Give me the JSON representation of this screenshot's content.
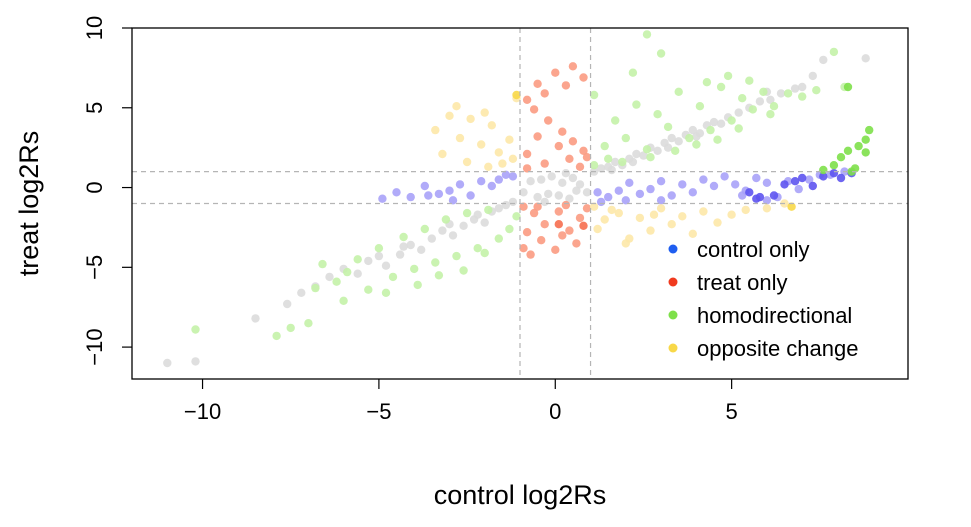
{
  "chart_data": {
    "type": "scatter",
    "xlabel": "control log2Rs",
    "ylabel": "treat log2Rs",
    "xlim": [
      -12,
      10
    ],
    "ylim": [
      -12,
      10
    ],
    "x_ticks": [
      -10,
      -5,
      0,
      5
    ],
    "x_tick_labels": [
      "−10",
      "−5",
      "0",
      "5"
    ],
    "y_ticks": [
      -10,
      -5,
      0,
      5,
      10
    ],
    "y_tick_labels": [
      "−10",
      "−5",
      "0",
      "5",
      "10"
    ],
    "reference_lines": {
      "x": [
        -1,
        1
      ],
      "y": [
        -1,
        1
      ],
      "style": "dashed"
    },
    "grid": false,
    "legend": {
      "position": "bottom-right",
      "entries": [
        {
          "label": "control only",
          "color": "#1f5ef0"
        },
        {
          "label": "treat only",
          "color": "#f03a1e"
        },
        {
          "label": "homodirectional",
          "color": "#7ee04a"
        },
        {
          "label": "opposite change",
          "color": "#f8d848"
        }
      ]
    },
    "series": [
      {
        "key": "none",
        "color": "#dcdcdc",
        "points": [
          [
            -11,
            -11
          ],
          [
            -10.2,
            -10.9
          ],
          [
            -8.5,
            -8.2
          ],
          [
            -7.6,
            -7.3
          ],
          [
            -7.2,
            -6.6
          ],
          [
            -6.8,
            -6.2
          ],
          [
            -6.4,
            -5.6
          ],
          [
            -6.0,
            -5.1
          ],
          [
            -5.6,
            -5.4
          ],
          [
            -5.3,
            -4.6
          ],
          [
            -5.0,
            -4.3
          ],
          [
            -4.8,
            -4.9
          ],
          [
            -4.4,
            -4.2
          ],
          [
            -4.1,
            -3.6
          ],
          [
            -3.8,
            -3.9
          ],
          [
            -3.5,
            -3.2
          ],
          [
            -3.2,
            -2.7
          ],
          [
            -2.9,
            -3.0
          ],
          [
            -2.6,
            -2.4
          ],
          [
            -2.3,
            -2.0
          ],
          [
            -2.0,
            -2.2
          ],
          [
            -1.8,
            -1.5
          ],
          [
            -1.6,
            -1.3
          ],
          [
            -1.4,
            -1.1
          ],
          [
            -1.2,
            -0.9
          ],
          [
            -0.9,
            -0.3
          ],
          [
            -0.7,
            0.4
          ],
          [
            -0.5,
            -0.6
          ],
          [
            -0.4,
            0.5
          ],
          [
            -0.2,
            -0.4
          ],
          [
            -0.1,
            0.7
          ],
          [
            0.1,
            -0.5
          ],
          [
            0.2,
            0.3
          ],
          [
            0.4,
            -0.7
          ],
          [
            0.5,
            0.6
          ],
          [
            0.7,
            0.2
          ],
          [
            0.9,
            -0.3
          ],
          [
            1.1,
            1.0
          ],
          [
            1.3,
            1.2
          ],
          [
            1.5,
            1.3
          ],
          [
            1.7,
            1.6
          ],
          [
            1.9,
            1.4
          ],
          [
            2.1,
            1.8
          ],
          [
            2.3,
            2.1
          ],
          [
            2.5,
            2.0
          ],
          [
            2.7,
            2.5
          ],
          [
            2.9,
            2.3
          ],
          [
            3.1,
            2.8
          ],
          [
            3.3,
            3.1
          ],
          [
            3.5,
            2.9
          ],
          [
            3.7,
            3.3
          ],
          [
            3.9,
            3.6
          ],
          [
            4.1,
            3.4
          ],
          [
            4.3,
            3.9
          ],
          [
            4.5,
            4.1
          ],
          [
            4.7,
            4.0
          ],
          [
            4.9,
            4.4
          ],
          [
            5.2,
            4.7
          ],
          [
            5.5,
            5.0
          ],
          [
            5.8,
            5.4
          ],
          [
            6.1,
            5.5
          ],
          [
            6.4,
            5.9
          ],
          [
            6.8,
            6.2
          ],
          [
            7.3,
            7.0
          ],
          [
            7.0,
            6.3
          ],
          [
            6.0,
            6.0
          ],
          [
            8.8,
            8.1
          ],
          [
            7.6,
            8.0
          ],
          [
            -4.3,
            -3.7
          ],
          [
            -3.0,
            -2.3
          ],
          [
            -2.2,
            -1.7
          ],
          [
            1.6,
            1.1
          ],
          [
            2.2,
            1.6
          ],
          [
            3.2,
            2.5
          ],
          [
            4.0,
            3.2
          ],
          [
            0.3,
            0.9
          ],
          [
            -0.3,
            -0.9
          ],
          [
            0.6,
            -0.2
          ]
        ]
      },
      {
        "key": "control only",
        "color": "#a8a2f8",
        "points": [
          [
            -4.9,
            -0.7
          ],
          [
            -4.5,
            -0.3
          ],
          [
            -4.1,
            -0.6
          ],
          [
            -3.7,
            0.1
          ],
          [
            -3.3,
            -0.4
          ],
          [
            -3.0,
            -0.2
          ],
          [
            -2.7,
            0.2
          ],
          [
            -2.4,
            -0.5
          ],
          [
            -2.1,
            0.4
          ],
          [
            -1.8,
            0.1
          ],
          [
            -1.6,
            0.5
          ],
          [
            -1.4,
            0.8
          ],
          [
            -1.2,
            0.7
          ],
          [
            -2.9,
            -0.8
          ],
          [
            -3.6,
            -0.5
          ],
          [
            1.2,
            -0.3
          ],
          [
            1.5,
            -0.6
          ],
          [
            1.8,
            -0.2
          ],
          [
            2.1,
            0.3
          ],
          [
            2.4,
            -0.4
          ],
          [
            2.7,
            -0.1
          ],
          [
            3.0,
            0.4
          ],
          [
            3.3,
            -0.5
          ],
          [
            3.6,
            0.2
          ],
          [
            3.9,
            -0.3
          ],
          [
            4.2,
            0.5
          ],
          [
            4.5,
            0.1
          ],
          [
            4.8,
            0.7
          ],
          [
            5.1,
            0.2
          ],
          [
            5.4,
            -0.2
          ],
          [
            5.7,
            0.6
          ],
          [
            6.0,
            0.3
          ],
          [
            6.3,
            -0.6
          ],
          [
            6.6,
            0.4
          ],
          [
            6.9,
            -0.1
          ],
          [
            7.2,
            0.5
          ],
          [
            7.5,
            0.8
          ],
          [
            7.8,
            0.8
          ],
          [
            8.2,
            1.0
          ],
          [
            6.0,
            -0.8
          ],
          [
            5.3,
            -0.5
          ],
          [
            1.3,
            -0.9
          ],
          [
            2.0,
            -0.8
          ],
          [
            3.0,
            -0.8
          ]
        ]
      },
      {
        "key": "control only (strong)",
        "color": "#5e54f0",
        "points": [
          [
            5.5,
            -0.3
          ],
          [
            5.8,
            -0.6
          ],
          [
            6.2,
            -0.5
          ],
          [
            6.5,
            0.2
          ],
          [
            6.8,
            0.4
          ],
          [
            7.0,
            0.6
          ],
          [
            7.3,
            0.1
          ],
          [
            7.6,
            0.7
          ],
          [
            7.9,
            0.9
          ],
          [
            8.1,
            0.6
          ],
          [
            8.4,
            0.9
          ],
          [
            5.7,
            -0.7
          ]
        ]
      },
      {
        "key": "treat only",
        "color": "#fb9b82",
        "points": [
          [
            -0.8,
            5.5
          ],
          [
            -0.5,
            6.5
          ],
          [
            -0.3,
            5.9
          ],
          [
            0,
            7.2
          ],
          [
            0.3,
            6.4
          ],
          [
            0.5,
            7.6
          ],
          [
            0.8,
            6.9
          ],
          [
            -0.6,
            4.9
          ],
          [
            -0.2,
            4.2
          ],
          [
            0.2,
            3.5
          ],
          [
            0.5,
            2.9
          ],
          [
            0.8,
            2.3
          ],
          [
            -0.8,
            2.1
          ],
          [
            -0.5,
            3.2
          ],
          [
            0.1,
            2.6
          ],
          [
            0.4,
            1.8
          ],
          [
            -0.3,
            1.5
          ],
          [
            0.7,
            1.3
          ],
          [
            -0.8,
            1.2
          ],
          [
            0.9,
            1.9
          ],
          [
            -0.9,
            -1.2
          ],
          [
            -0.6,
            -1.6
          ],
          [
            -0.3,
            -2.3
          ],
          [
            0.1,
            -1.5
          ],
          [
            0.4,
            -2.7
          ],
          [
            0.7,
            -1.9
          ],
          [
            -0.8,
            -2.8
          ],
          [
            -0.4,
            -3.3
          ],
          [
            0.2,
            -3.0
          ],
          [
            0.6,
            -3.5
          ],
          [
            -0.7,
            -4.2
          ],
          [
            -0.9,
            -3.8
          ],
          [
            0.0,
            -3.9
          ],
          [
            -0.5,
            -1.2
          ],
          [
            0.9,
            -1.3
          ],
          [
            0.3,
            -1.1
          ]
        ]
      },
      {
        "key": "treat only (strong)",
        "color": "#f66e4f",
        "points": [
          [
            0.1,
            -2.3
          ],
          [
            0.8,
            -2.4
          ]
        ]
      },
      {
        "key": "homodirectional",
        "color": "#c4f2a8",
        "points": [
          [
            -10.2,
            -8.9
          ],
          [
            -7.9,
            -9.3
          ],
          [
            -7.5,
            -8.8
          ],
          [
            -7.0,
            -8.5
          ],
          [
            -6.6,
            -4.8
          ],
          [
            -6.2,
            -5.9
          ],
          [
            -6.0,
            -7.1
          ],
          [
            -5.6,
            -4.5
          ],
          [
            -5.3,
            -6.4
          ],
          [
            -5.0,
            -3.8
          ],
          [
            -4.6,
            -5.6
          ],
          [
            -4.3,
            -3.1
          ],
          [
            -4.0,
            -5.1
          ],
          [
            -3.7,
            -2.6
          ],
          [
            -3.4,
            -4.7
          ],
          [
            -3.1,
            -2.0
          ],
          [
            -2.8,
            -4.3
          ],
          [
            -2.5,
            -1.6
          ],
          [
            -2.2,
            -3.8
          ],
          [
            -1.9,
            -1.4
          ],
          [
            -1.6,
            -3.2
          ],
          [
            -1.3,
            -2.6
          ],
          [
            -1.1,
            -1.8
          ],
          [
            -3.9,
            -6.1
          ],
          [
            -4.8,
            -6.6
          ],
          [
            -5.9,
            -5.3
          ],
          [
            -6.8,
            -6.3
          ],
          [
            -2.6,
            -5.2
          ],
          [
            -3.3,
            -5.5
          ],
          [
            -2.0,
            -4.1
          ],
          [
            1.1,
            5.8
          ],
          [
            1.1,
            1.4
          ],
          [
            1.4,
            2.6
          ],
          [
            1.7,
            4.2
          ],
          [
            2.0,
            3.1
          ],
          [
            2.3,
            5.2
          ],
          [
            2.6,
            2.4
          ],
          [
            2.9,
            4.6
          ],
          [
            3.2,
            3.8
          ],
          [
            3.5,
            6.0
          ],
          [
            3.8,
            3.1
          ],
          [
            4.1,
            5.1
          ],
          [
            4.4,
            3.6
          ],
          [
            4.7,
            6.3
          ],
          [
            5.0,
            4.2
          ],
          [
            5.3,
            5.6
          ],
          [
            5.6,
            4.9
          ],
          [
            5.9,
            6.0
          ],
          [
            6.2,
            5.1
          ],
          [
            6.6,
            5.9
          ],
          [
            7.0,
            5.7
          ],
          [
            7.4,
            6.1
          ],
          [
            7.9,
            8.5
          ],
          [
            8.2,
            6.3
          ],
          [
            2.2,
            7.2
          ],
          [
            3.0,
            8.4
          ],
          [
            2.6,
            9.6
          ],
          [
            4.3,
            6.6
          ],
          [
            4.9,
            7.0
          ],
          [
            5.5,
            6.7
          ],
          [
            2.7,
            1.9
          ],
          [
            3.4,
            2.3
          ],
          [
            4.0,
            2.7
          ],
          [
            4.6,
            3.0
          ],
          [
            1.5,
            1.8
          ],
          [
            1.9,
            1.6
          ],
          [
            5.2,
            3.7
          ],
          [
            6.1,
            4.6
          ]
        ]
      },
      {
        "key": "homodirectional (strong)",
        "color": "#7ee04a",
        "points": [
          [
            7.9,
            1.4
          ],
          [
            8.1,
            1.9
          ],
          [
            8.3,
            2.3
          ],
          [
            8.5,
            1.2
          ],
          [
            8.6,
            2.6
          ],
          [
            8.8,
            3.0
          ],
          [
            8.9,
            3.6
          ],
          [
            8.4,
            1.0
          ],
          [
            8.8,
            2.2
          ],
          [
            7.6,
            1.1
          ],
          [
            8.3,
            6.3
          ]
        ]
      },
      {
        "key": "opposite change",
        "color": "#fde8a8",
        "points": [
          [
            -3.4,
            3.6
          ],
          [
            -3.0,
            4.5
          ],
          [
            -2.7,
            3.1
          ],
          [
            -2.4,
            4.3
          ],
          [
            -2.1,
            2.7
          ],
          [
            -1.8,
            3.9
          ],
          [
            -1.6,
            2.2
          ],
          [
            -1.3,
            3.0
          ],
          [
            -1.1,
            5.6
          ],
          [
            -2.5,
            1.6
          ],
          [
            -1.9,
            1.3
          ],
          [
            -1.2,
            1.8
          ],
          [
            -3.2,
            2.1
          ],
          [
            -2.8,
            5.1
          ],
          [
            -2.0,
            4.7
          ],
          [
            -1.5,
            1.5
          ],
          [
            1.1,
            -1.2
          ],
          [
            1.4,
            -2.0
          ],
          [
            1.8,
            -1.6
          ],
          [
            2.1,
            -3.2
          ],
          [
            2.4,
            -1.9
          ],
          [
            2.7,
            -2.7
          ],
          [
            3.0,
            -1.3
          ],
          [
            3.3,
            -2.3
          ],
          [
            3.6,
            -1.8
          ],
          [
            3.9,
            -2.9
          ],
          [
            4.2,
            -1.5
          ],
          [
            4.6,
            -2.2
          ],
          [
            5.0,
            -1.7
          ],
          [
            5.4,
            -1.4
          ],
          [
            6.0,
            -1.3
          ],
          [
            6.5,
            -1.0
          ],
          [
            2.0,
            -3.5
          ],
          [
            1.2,
            -2.6
          ],
          [
            1.6,
            -1.4
          ],
          [
            2.8,
            -1.7
          ]
        ]
      },
      {
        "key": "opposite change (strong)",
        "color": "#f8d848",
        "points": [
          [
            -1.1,
            5.8
          ],
          [
            6.7,
            -1.2
          ]
        ]
      }
    ]
  }
}
